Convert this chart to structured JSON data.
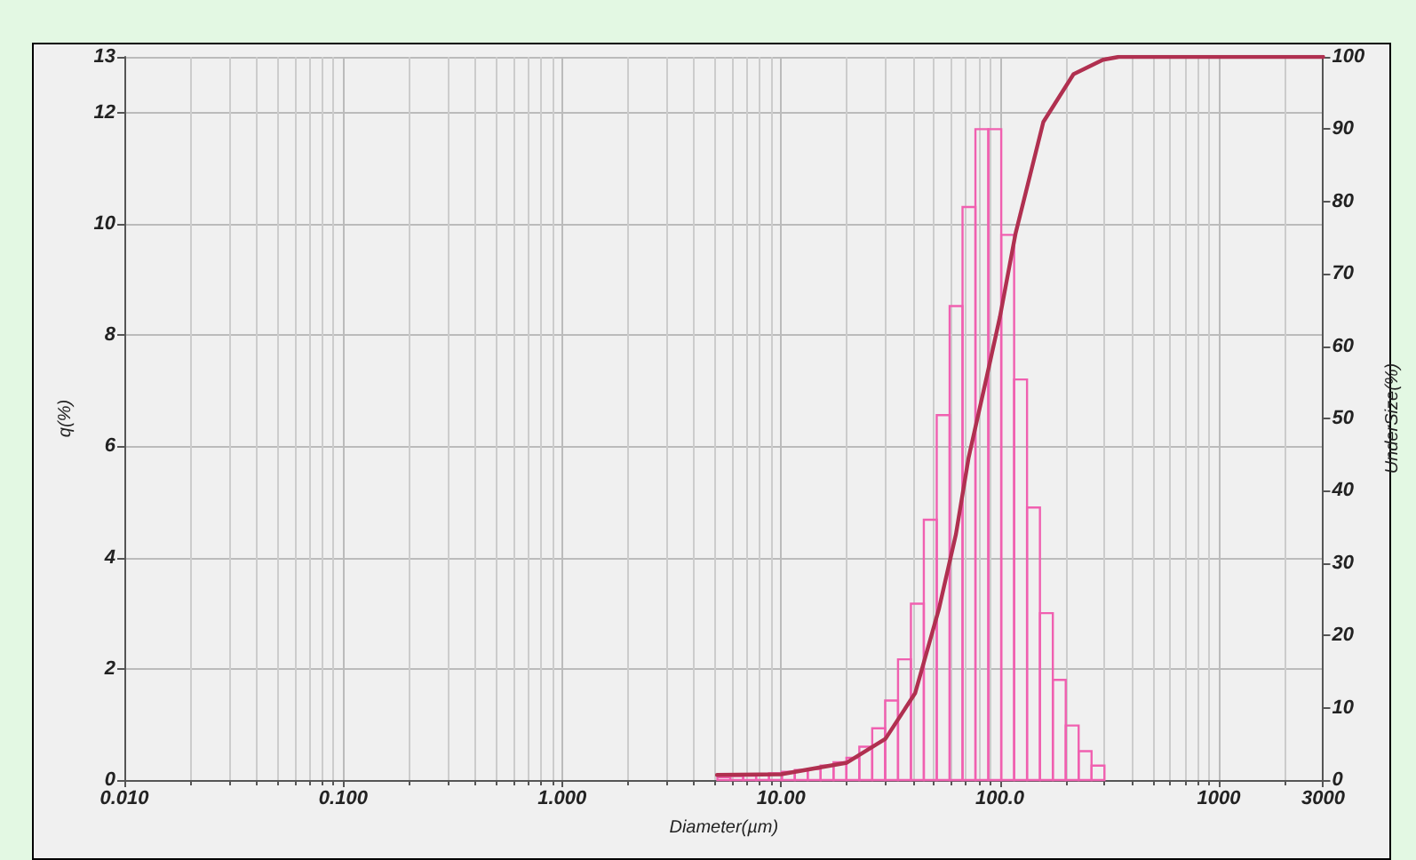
{
  "chart_data": {
    "type": "histogram",
    "xlabel": "Diameter(µm)",
    "ylabel": "q(%)",
    "y2label": "UnderSize(%)",
    "log": "x",
    "grid": true,
    "marker": "none",
    "line_style": "solid",
    "xlim": [
      0.01,
      3000
    ],
    "xticks": [
      {
        "value": 0.01,
        "label": "0.010"
      },
      {
        "value": 0.1,
        "label": "0.100"
      },
      {
        "value": 1,
        "label": "1.000"
      },
      {
        "value": 10,
        "label": "10.00"
      },
      {
        "value": 100,
        "label": "100.0"
      },
      1000,
      3000
    ],
    "ylim": [
      0,
      13
    ],
    "yticks": [
      0,
      2,
      4,
      6,
      8,
      10,
      12,
      13
    ],
    "y2lim": [
      0,
      100
    ],
    "y2ticks": [
      0,
      10,
      20,
      30,
      40,
      50,
      60,
      70,
      80,
      90,
      100
    ],
    "series": [
      {
        "color": "#f060b0",
        "bins": [
          5.122,
          5.867,
          6.72,
          7.697,
          8.816,
          10.097,
          11.565,
          13.246,
          15.172,
          17.377,
          19.904,
          22.797,
          26.111,
          29.907,
          34.255,
          39.234,
          44.938,
          51.471,
          58.953,
          67.523,
          77.339,
          88.583,
          101.46,
          116.21,
          133.1,
          152.45,
          174.6,
          200,
          229.08,
          262.38,
          300.52
        ],
        "values": [
          0.05,
          0.07,
          0.08,
          0.1,
          0.12,
          0.15,
          0.18,
          0.2,
          0.26,
          0.32,
          0.4,
          0.6,
          0.93,
          1.43,
          2.17,
          3.17,
          4.68,
          6.56,
          8.52,
          10.3,
          11.7,
          11.7,
          9.8,
          7.2,
          4.9,
          3.0,
          1.8,
          0.98,
          0.52,
          0.26
        ]
      },
      {
        "type": "line",
        "axis": "y2",
        "color": "#b03050",
        "x": [
          5.1,
          10,
          20,
          30,
          41,
          52.6,
          63,
          72,
          86,
          100,
          118,
          158,
          217,
          296,
          350,
          3000
        ],
        "values": [
          0.7,
          0.8,
          2.4,
          5.7,
          12,
          23.6,
          34,
          44.6,
          55,
          64,
          75.6,
          91,
          97.6,
          99.6,
          100,
          100
        ]
      }
    ]
  }
}
